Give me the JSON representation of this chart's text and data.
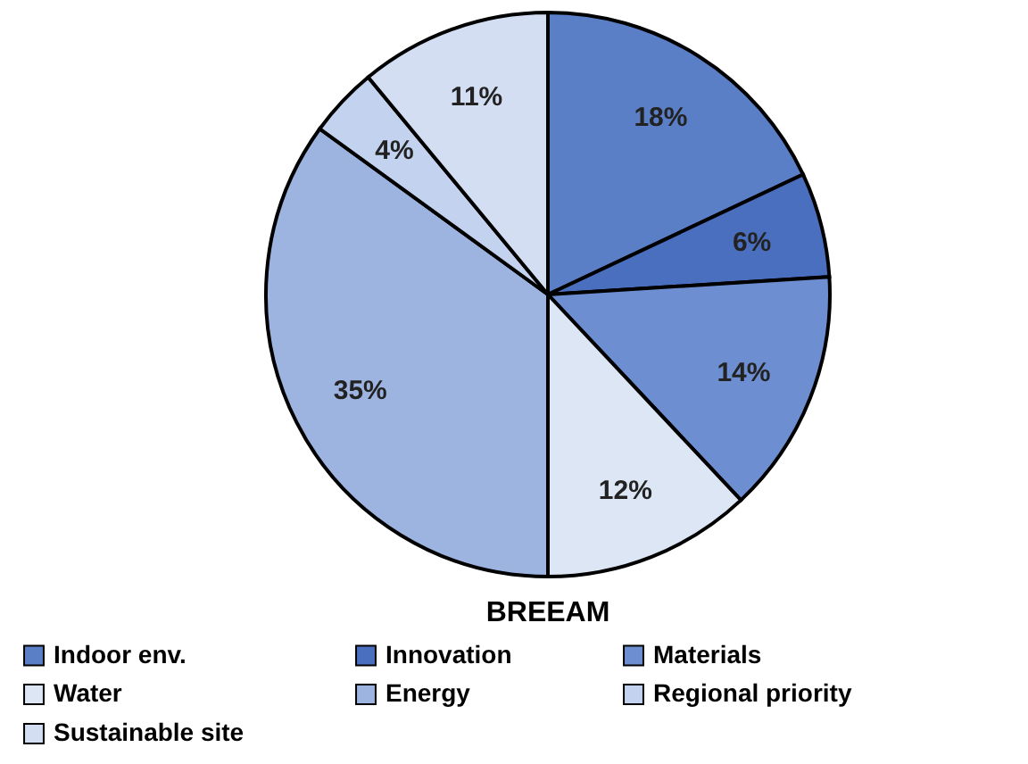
{
  "chart_data": {
    "type": "pie",
    "title": "BREEAM",
    "categories": [
      "Indoor env.",
      "Innovation",
      "Materials",
      "Water",
      "Energy",
      "Regional priority",
      "Sustainable site"
    ],
    "values": [
      18,
      6,
      14,
      12,
      35,
      4,
      11
    ],
    "value_labels": [
      "18%",
      "6%",
      "14%",
      "12%",
      "35%",
      "4%",
      "11%"
    ],
    "colors": [
      "#5b7fc7",
      "#4a6fbf",
      "#6d8fd1",
      "#dde6f5",
      "#9db3e0",
      "#c3d2ee",
      "#d3def3"
    ],
    "legend": "bottom"
  }
}
